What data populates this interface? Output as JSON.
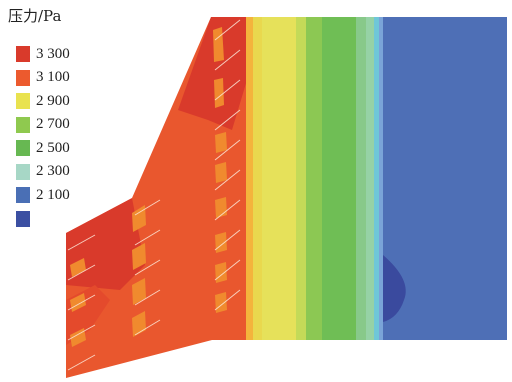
{
  "legend": {
    "title": "压力/Pa",
    "items": [
      {
        "label": "3 300",
        "color": "#d93a2b"
      },
      {
        "label": "3 100",
        "color": "#ec5a2e"
      },
      {
        "label": "2 900",
        "color": "#e9e24f"
      },
      {
        "label": "2 700",
        "color": "#8fc94f"
      },
      {
        "label": "2 500",
        "color": "#67b852"
      },
      {
        "label": "2 300",
        "color": "#a7d7c6"
      },
      {
        "label": "2 100",
        "color": "#4a6fb5"
      },
      {
        "label": "",
        "color": "#3b4fa2"
      }
    ]
  },
  "palette": {
    "deep_red": "#d93a2b",
    "red_orange": "#e9572e",
    "orange": "#f08a2e",
    "yellow_orange": "#f4b43c",
    "yellow": "#e6e15a",
    "light_green": "#a6d15a",
    "green": "#6fbe55",
    "mint": "#96d2a6",
    "cyan": "#6fc7d8",
    "light_blue": "#7aa4d8",
    "blue": "#4e6fb6",
    "deep_blue": "#3a4a9e"
  }
}
